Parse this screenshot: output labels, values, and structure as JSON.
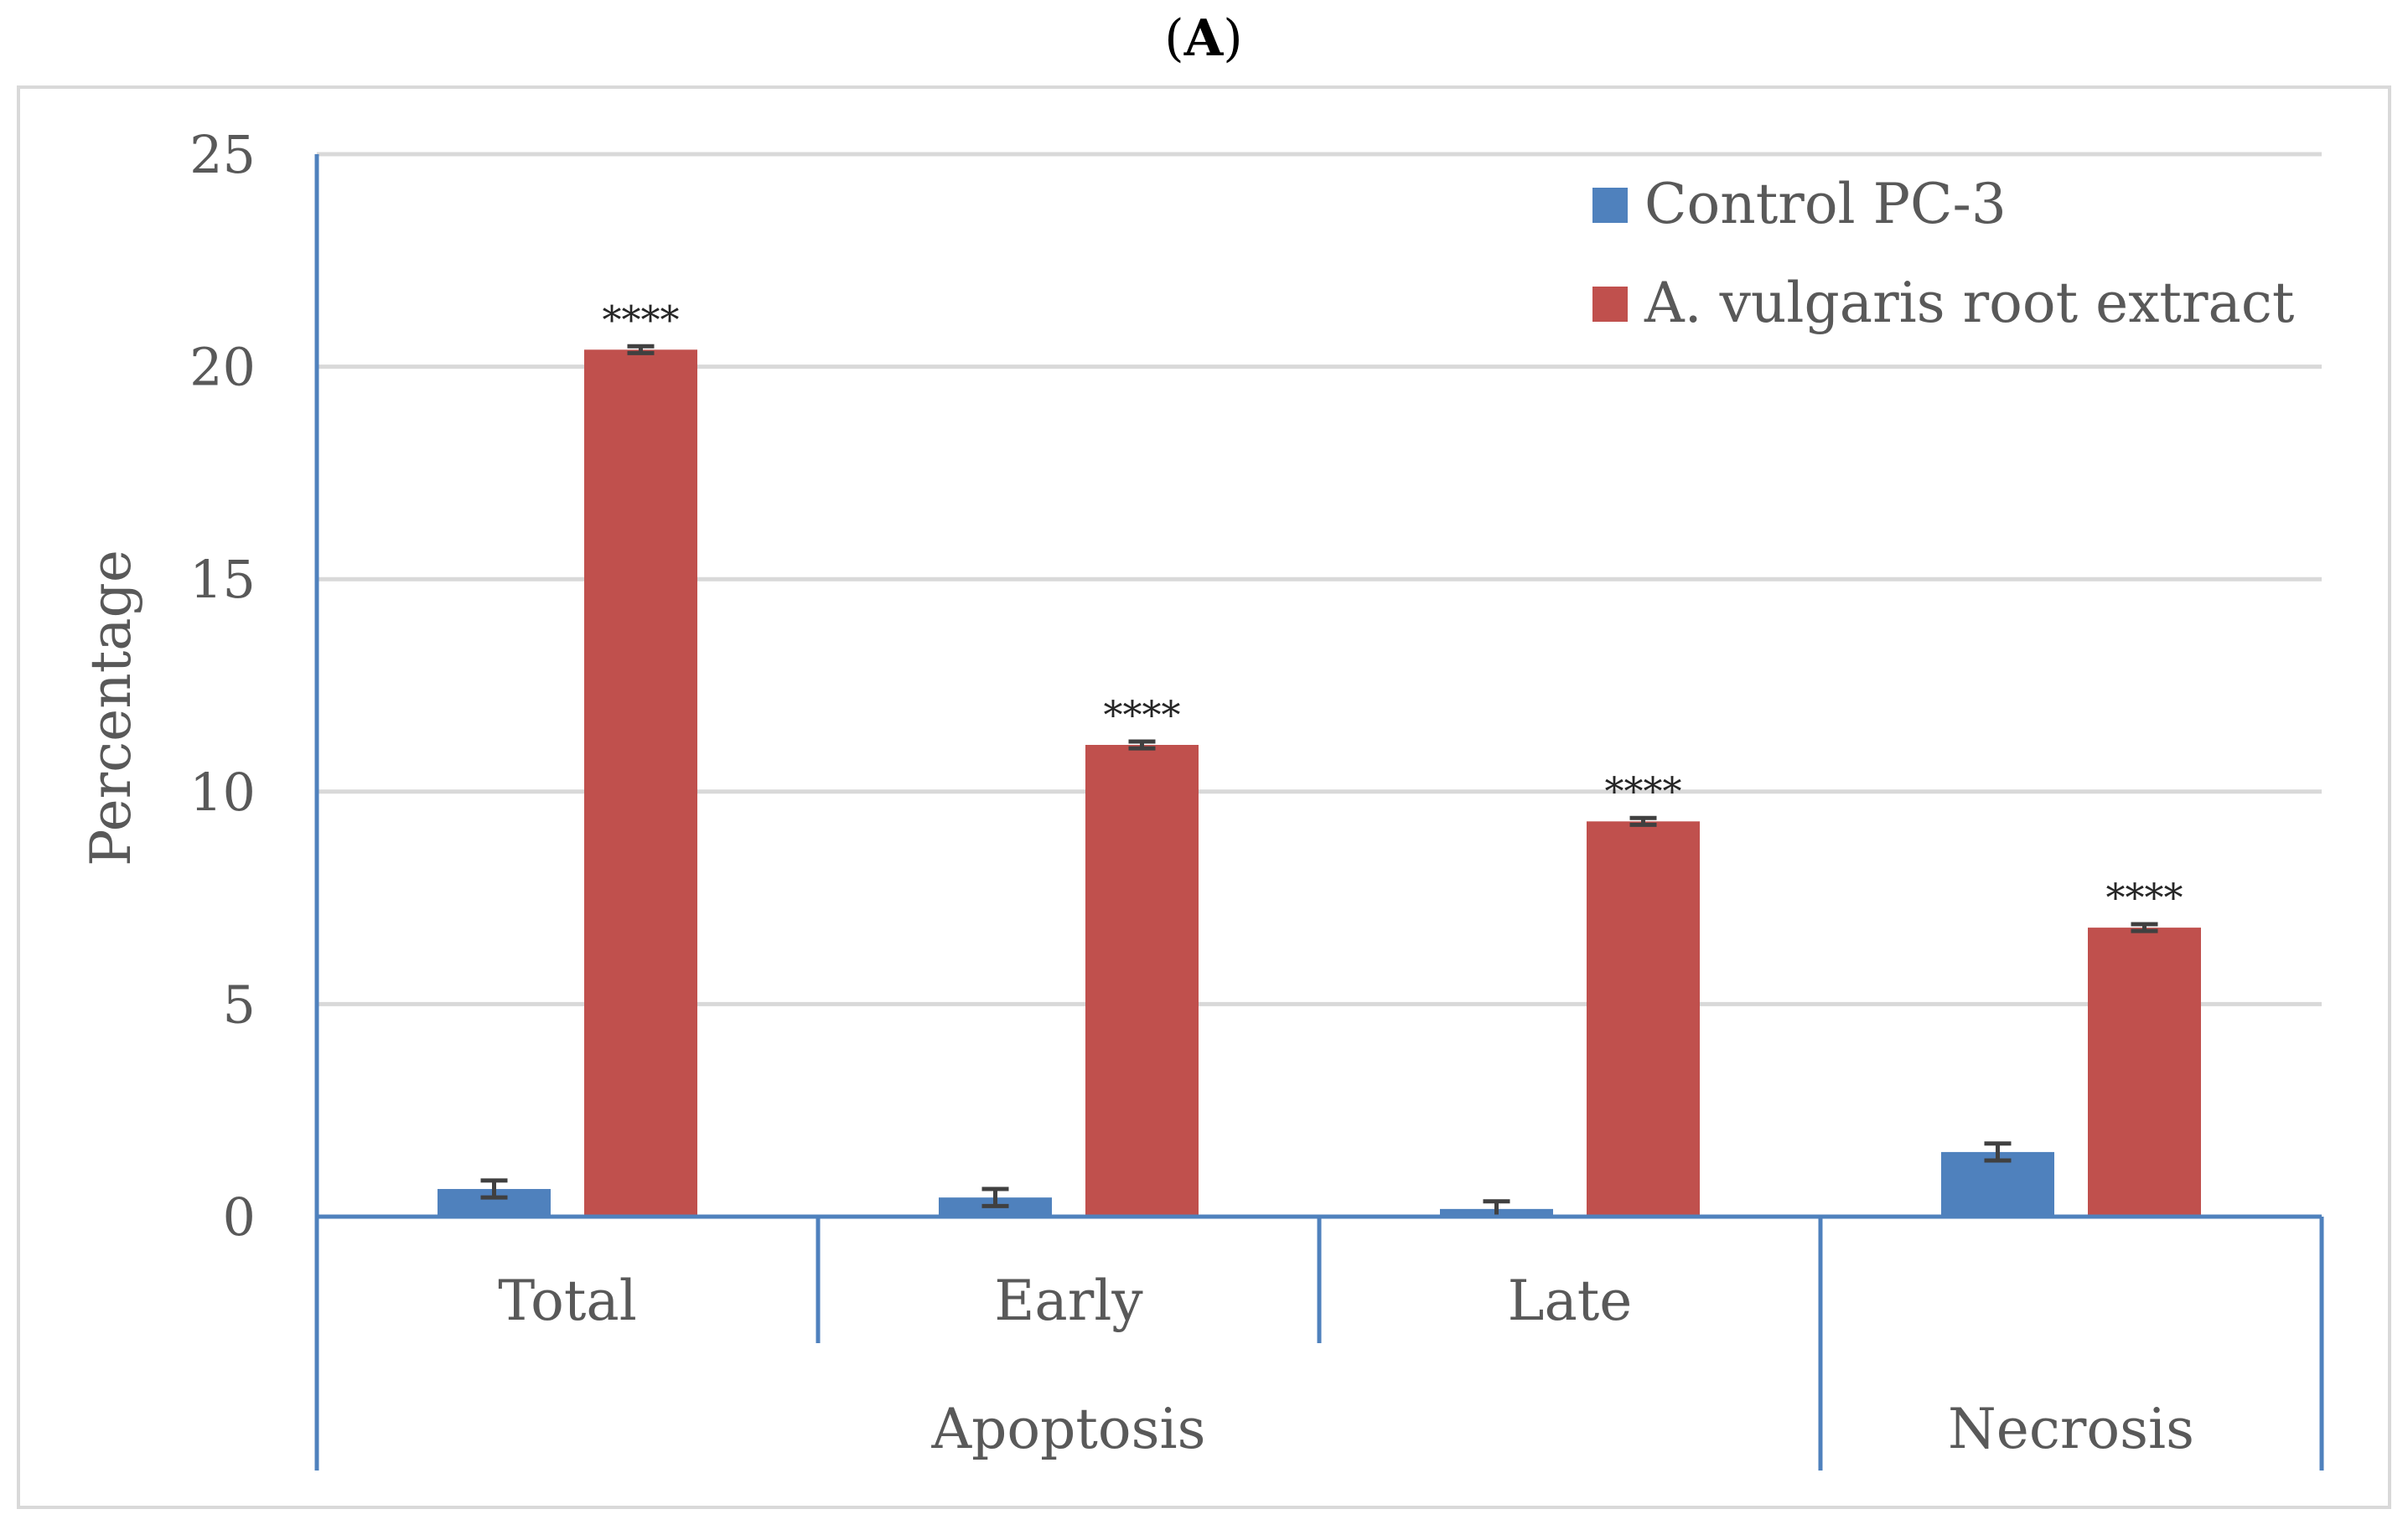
{
  "panel_label": "A",
  "chart_data": {
    "type": "bar",
    "title": "(A)",
    "ylabel": "Percentage",
    "xlabel": "",
    "ylim": [
      0,
      25
    ],
    "yticks": [
      0,
      5,
      10,
      15,
      20,
      25
    ],
    "grid": true,
    "legend_position": "top-right",
    "categories": [
      "Total",
      "Early",
      "Late",
      "Necrosis"
    ],
    "groups": [
      {
        "label": "Apoptosis",
        "categories": [
          "Total",
          "Early",
          "Late"
        ]
      },
      {
        "label": "Necrosis",
        "categories": [
          "Necrosis"
        ]
      }
    ],
    "category_labels": [
      "Total",
      "Early",
      "Late",
      ""
    ],
    "series": [
      {
        "name": "Control PC-3",
        "color": "#4F81BD",
        "values": [
          0.65,
          0.45,
          0.18,
          1.52
        ],
        "errors": [
          0.2,
          0.2,
          0.18,
          0.2
        ],
        "annotations": [
          "",
          "",
          "",
          ""
        ]
      },
      {
        "name": "A. vulgaris root extract",
        "color": "#C0504D",
        "values": [
          20.4,
          11.1,
          9.3,
          6.8
        ],
        "errors": [
          0.08,
          0.08,
          0.08,
          0.08
        ],
        "annotations": [
          "****",
          "****",
          "****",
          "****"
        ]
      }
    ]
  }
}
